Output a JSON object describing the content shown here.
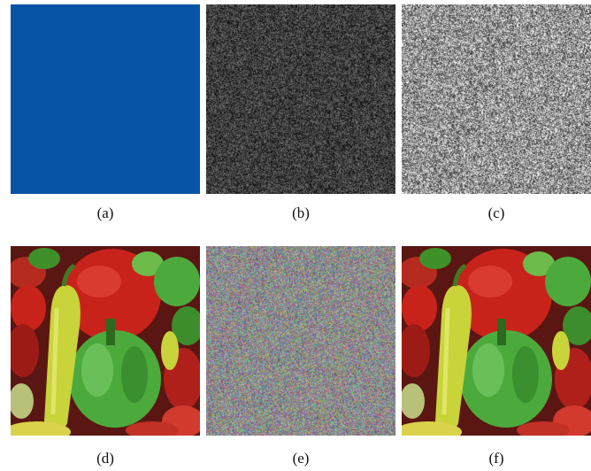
{
  "panels": [
    {
      "id": "a",
      "caption": "(a)",
      "content": "solid",
      "color": "#0753a6"
    },
    {
      "id": "b",
      "caption": "(b)",
      "content": "gray-noise",
      "brightness": "dark"
    },
    {
      "id": "c",
      "caption": "(c)",
      "content": "gray-noise",
      "brightness": "light"
    },
    {
      "id": "d",
      "caption": "(d)",
      "content": "peppers-photo"
    },
    {
      "id": "e",
      "caption": "(e)",
      "content": "color-noise"
    },
    {
      "id": "f",
      "caption": "(f)",
      "content": "peppers-photo"
    }
  ],
  "colors": {
    "background": "#ffffff",
    "solid_blue": "#0753a6",
    "pepper_red": "#c8231b",
    "pepper_green": "#4caa3c",
    "pepper_yellow_green": "#c9d43a"
  }
}
